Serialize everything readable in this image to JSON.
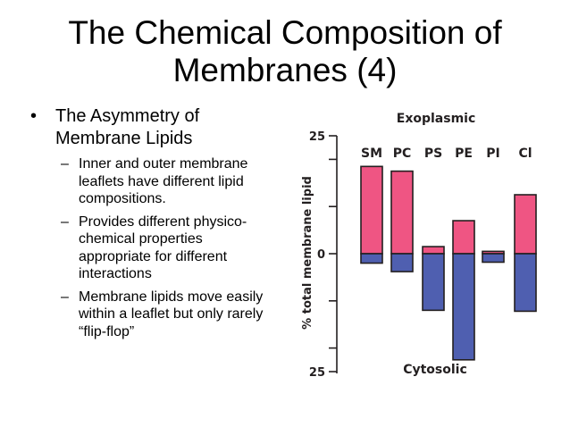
{
  "slide": {
    "title_lines": [
      "The Chemical Composition of",
      "Membranes (4)"
    ],
    "bullet": "The Asymmetry of Membrane Lipids",
    "sub_bullets": [
      "Inner and outer membrane leaflets have different lipid compositions.",
      "Provides different physico-chemical properties appropriate for different interactions",
      "Membrane lipids move easily within a leaflet but only rarely “flip-flop”"
    ]
  },
  "chart_data": {
    "type": "bar",
    "categories": [
      "SM",
      "PC",
      "PS",
      "PE",
      "PI",
      "Cl"
    ],
    "series": [
      {
        "values": [
          18.5,
          17.5,
          1.5,
          7,
          0.5,
          12.5
        ]
      },
      {
        "values": [
          -2,
          -3.8,
          -12,
          -22.5,
          -1.8,
          -12.2
        ]
      }
    ],
    "ylabel": "% total membrane lipid",
    "tick_labels": [
      "25",
      "0",
      "25"
    ],
    "ylim": [
      -25,
      25
    ],
    "top_label": "Exoplasmic",
    "bottom_label": "Cytosolic",
    "colors": {
      "exoplasmic": "#ef5583",
      "cytosolic": "#4f5fb0",
      "outline": "#231f20"
    },
    "grid": false
  }
}
